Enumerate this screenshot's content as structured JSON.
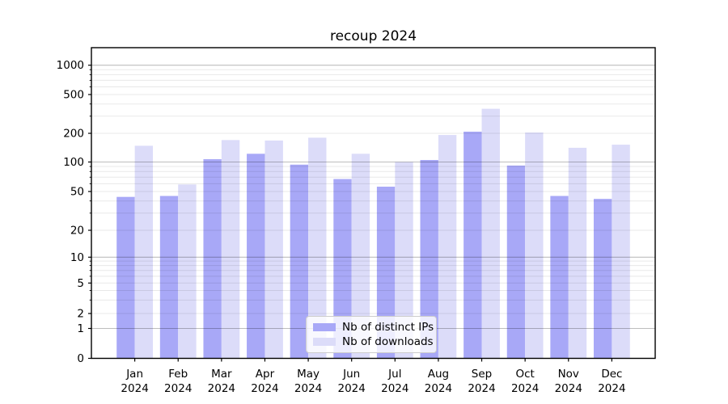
{
  "chart_data": {
    "type": "bar",
    "title": "recoup 2024",
    "categories": [
      "Jan 2024",
      "Feb 2024",
      "Mar 2024",
      "Apr 2024",
      "May 2024",
      "Jun 2024",
      "Jul 2024",
      "Aug 2024",
      "Sep 2024",
      "Oct 2024",
      "Nov 2024",
      "Dec 2024"
    ],
    "series": [
      {
        "name": "Nb of distinct IPs",
        "color": "#a8a8f7",
        "values": [
          44,
          45,
          107,
          122,
          94,
          67,
          56,
          105,
          208,
          92,
          45,
          42
        ]
      },
      {
        "name": "Nb of downloads",
        "color": "#dcdcf9",
        "values": [
          148,
          59,
          170,
          168,
          180,
          122,
          100,
          192,
          357,
          204,
          141,
          152
        ]
      }
    ],
    "xlabel": "",
    "ylabel": "",
    "y_axis": {
      "scale": "symlog",
      "ticks": [
        0,
        1,
        2,
        5,
        10,
        20,
        50,
        100,
        200,
        500,
        1000
      ],
      "ylim": [
        0,
        1500
      ]
    },
    "grid": true,
    "legend_position": "lower center"
  },
  "colors": {
    "background": "#ffffff",
    "spine": "#000000",
    "major_grid": "#bdbdbd",
    "minor_grid": "#e8e8e8",
    "bar_dark": "#a8a8f7",
    "bar_light": "#dcdcf9"
  }
}
